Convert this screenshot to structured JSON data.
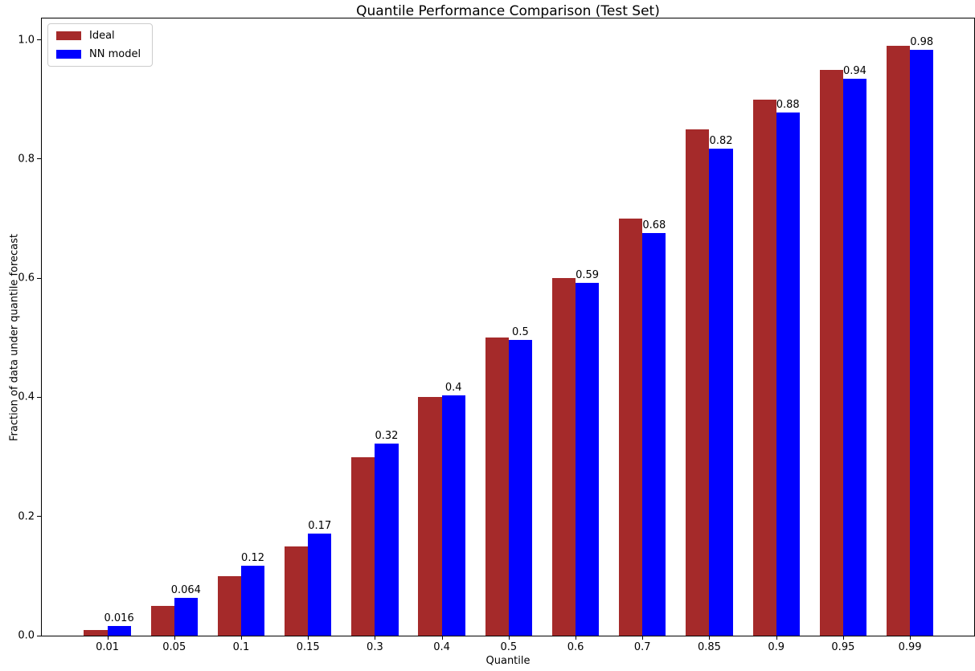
{
  "chart_data": {
    "type": "bar",
    "title": "Quantile Performance Comparison (Test Set)",
    "xlabel": "Quantile",
    "ylabel": "Fraction of data under quantile forecast",
    "categories": [
      "0.01",
      "0.05",
      "0.1",
      "0.15",
      "0.3",
      "0.4",
      "0.5",
      "0.6",
      "0.7",
      "0.85",
      "0.9",
      "0.95",
      "0.99"
    ],
    "series": [
      {
        "name": "Ideal",
        "color": "#A52A2A",
        "values": [
          0.01,
          0.05,
          0.1,
          0.15,
          0.3,
          0.4,
          0.5,
          0.6,
          0.7,
          0.85,
          0.9,
          0.95,
          0.99
        ]
      },
      {
        "name": "NN model",
        "color": "#0000FF",
        "values": [
          0.016,
          0.064,
          0.118,
          0.172,
          0.322,
          0.403,
          0.497,
          0.592,
          0.676,
          0.818,
          0.878,
          0.935,
          0.983
        ],
        "value_labels": [
          "0.016",
          "0.064",
          "0.12",
          "0.17",
          "0.32",
          "0.4",
          "0.5",
          "0.59",
          "0.68",
          "0.82",
          "0.88",
          "0.94",
          "0.98"
        ]
      }
    ],
    "yticks": [
      "0.0",
      "0.2",
      "0.4",
      "0.6",
      "0.8",
      "1.0"
    ],
    "ylim": [
      0,
      1.036
    ],
    "legend_position": "upper left",
    "grid": false,
    "value_labels_on_series": "NN model",
    "axis_color": "#000000",
    "background_color": "#ffffff"
  }
}
